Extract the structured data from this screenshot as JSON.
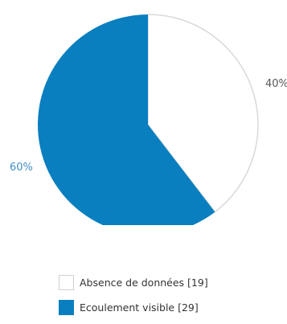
{
  "chart_data": {
    "type": "pie",
    "slices": [
      {
        "label": "Absence de données [19]",
        "value": 19,
        "percent_label": "40%",
        "color": "#ffffff",
        "border": "#d9d9d9"
      },
      {
        "label": "Ecoulement visible [29]",
        "value": 29,
        "percent_label": "60%",
        "color": "#0a7fbf",
        "border": "#0a7fbf"
      }
    ],
    "label_colors": [
      "#555555",
      "#3f8ec6"
    ],
    "legend_position": "bottom"
  }
}
